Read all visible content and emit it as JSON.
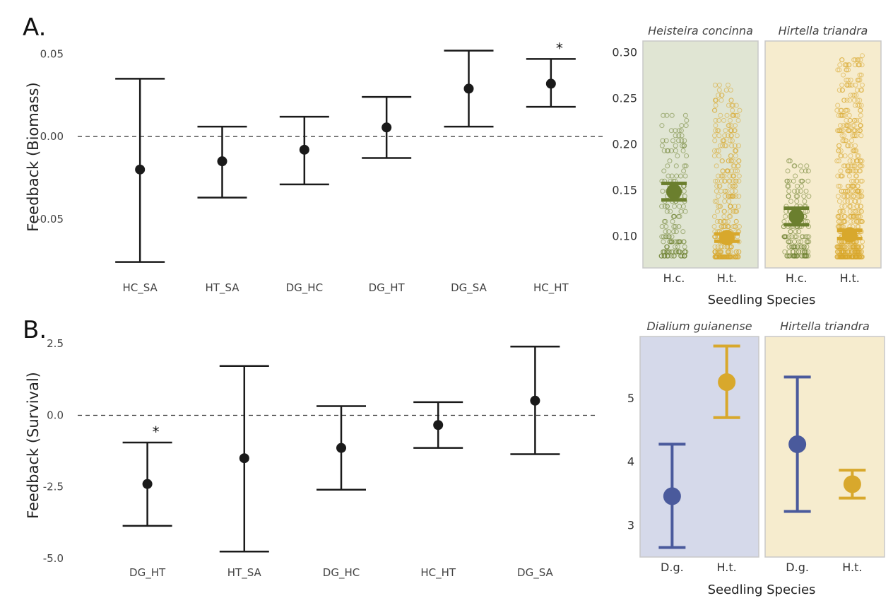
{
  "chart_data": [
    {
      "panel": "A.",
      "type": "errorbar",
      "ylabel": "Feedback (Biomass)",
      "categories": [
        "HC_SA",
        "HT_SA",
        "DG_HC",
        "DG_HT",
        "DG_SA",
        "HC_HT"
      ],
      "mean": [
        -0.02,
        -0.015,
        -0.008,
        0.0055,
        0.029,
        0.032
      ],
      "lower": [
        -0.076,
        -0.037,
        -0.029,
        -0.013,
        0.006,
        0.018
      ],
      "upper": [
        0.035,
        0.006,
        0.012,
        0.024,
        0.052,
        0.047
      ],
      "significant": [
        false,
        false,
        false,
        false,
        false,
        true
      ],
      "sig_label": "*",
      "yticks": [
        0.05,
        0.0,
        -0.05
      ],
      "ytick_labels": [
        "0.05",
        "0.00",
        "-0.05"
      ],
      "ylim": [
        -0.08,
        0.057
      ],
      "reference_line": 0,
      "color": "#1a1a1a"
    },
    {
      "type": "jitter-scatter",
      "xlabel": "Seedling Species",
      "facets": [
        "Heisteira concinna",
        "Hirtella triandra"
      ],
      "facet_colors": [
        "#e0e5d3",
        "#f6ecce"
      ],
      "categories": [
        "H.c.",
        "H.t."
      ],
      "category_colors": [
        "#6b7f2e",
        "#d8a82c"
      ],
      "groups": [
        {
          "facet": 0,
          "category": 0,
          "mean": 0.148,
          "lower": 0.139,
          "upper": 0.157,
          "min": 0.078,
          "max": 0.232,
          "n": 170
        },
        {
          "facet": 0,
          "category": 1,
          "mean": 0.098,
          "lower": 0.094,
          "upper": 0.102,
          "min": 0.076,
          "max": 0.265,
          "n": 330
        },
        {
          "facet": 1,
          "category": 0,
          "mean": 0.121,
          "lower": 0.112,
          "upper": 0.13,
          "min": 0.078,
          "max": 0.183,
          "n": 150
        },
        {
          "facet": 1,
          "category": 1,
          "mean": 0.101,
          "lower": 0.097,
          "upper": 0.106,
          "min": 0.076,
          "max": 0.296,
          "n": 520
        }
      ],
      "yticks": [
        0.1,
        0.15,
        0.2,
        0.25,
        0.3
      ],
      "ytick_labels": [
        "0.10",
        "0.15",
        "0.20",
        "0.25",
        "0.30"
      ],
      "ylim": [
        0.065,
        0.312
      ]
    },
    {
      "panel": "B.",
      "type": "errorbar",
      "ylabel": "Feedback (Survival)",
      "categories": [
        "DG_HT",
        "HT_SA",
        "DG_HC",
        "HC_HT",
        "DG_SA"
      ],
      "mean": [
        -2.4,
        -1.5,
        -1.14,
        -0.34,
        0.51
      ],
      "lower": [
        -3.86,
        -4.76,
        -2.6,
        -1.14,
        -1.36
      ],
      "upper": [
        -0.95,
        1.72,
        0.32,
        0.46,
        2.4
      ],
      "significant": [
        true,
        false,
        false,
        false,
        false
      ],
      "sig_label": "*",
      "yticks": [
        2.5,
        0.0,
        -2.5,
        -5.0
      ],
      "ytick_labels": [
        "2.5",
        "0.0",
        "-2.5",
        "-5.0"
      ],
      "ylim": [
        -5.0,
        2.9
      ],
      "reference_line": 0,
      "color": "#1a1a1a"
    },
    {
      "type": "errorbar",
      "xlabel": "Seedling Species",
      "facets": [
        "Dialium guianense",
        "Hirtella triandra"
      ],
      "facet_colors": [
        "#d5d9ea",
        "#f6ecce"
      ],
      "categories": [
        "D.g.",
        "H.t."
      ],
      "category_colors": [
        "#4a5a9c",
        "#d8a82c"
      ],
      "groups": [
        {
          "facet": 0,
          "category": 0,
          "mean": 3.45,
          "lower": 2.64,
          "upper": 4.27
        },
        {
          "facet": 0,
          "category": 1,
          "mean": 5.25,
          "lower": 4.69,
          "upper": 5.82
        },
        {
          "facet": 1,
          "category": 0,
          "mean": 4.27,
          "lower": 3.21,
          "upper": 5.33
        },
        {
          "facet": 1,
          "category": 1,
          "mean": 3.64,
          "lower": 3.42,
          "upper": 3.86
        }
      ],
      "yticks": [
        3,
        4,
        5
      ],
      "ytick_labels": [
        "3",
        "4",
        "5"
      ],
      "ylim": [
        2.49,
        5.97
      ]
    }
  ]
}
